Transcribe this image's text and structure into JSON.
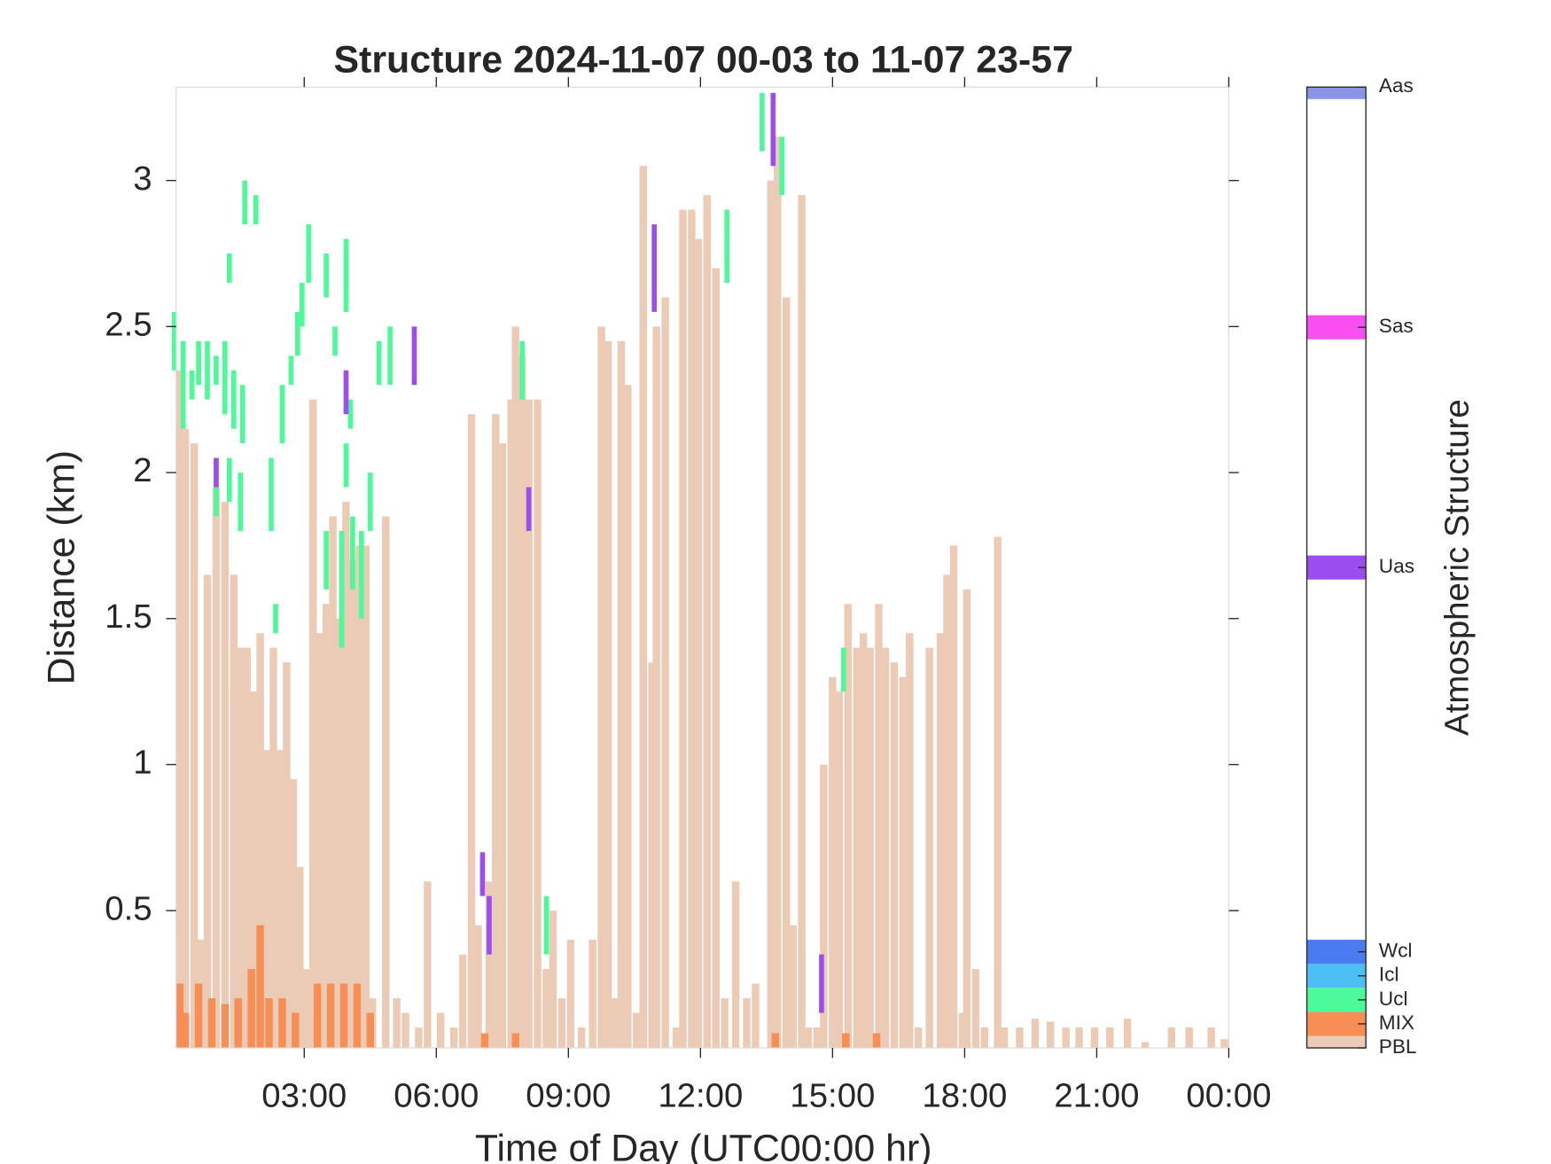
{
  "chart_data": {
    "type": "structure",
    "title": "Structure 2024-11-07 00-03 to 11-07 23-57",
    "x_label": "Time of Day (UTC00:00 hr)",
    "y_label": "Distance (km)",
    "xlim": [
      0.09,
      24
    ],
    "ylim": [
      0.03,
      3.32
    ],
    "xticks": [
      {
        "value": 3,
        "label": "03:00"
      },
      {
        "value": 6,
        "label": "06:00"
      },
      {
        "value": 9,
        "label": "09:00"
      },
      {
        "value": 12,
        "label": "12:00"
      },
      {
        "value": 15,
        "label": "15:00"
      },
      {
        "value": 18,
        "label": "18:00"
      },
      {
        "value": 21,
        "label": "21:00"
      },
      {
        "value": 24,
        "label": "00:00"
      }
    ],
    "yticks": [
      0.5,
      1,
      1.5,
      2,
      2.5,
      3
    ],
    "series": [
      {
        "name": "PBL",
        "x": [
          0.1,
          0.3,
          0.5,
          0.65,
          0.8,
          1.0,
          1.2,
          1.4,
          1.55,
          1.7,
          1.85,
          2.0,
          2.15,
          2.3,
          2.45,
          2.6,
          2.75,
          2.9,
          3.05,
          3.2,
          3.35,
          3.5,
          3.65,
          3.8,
          3.95,
          4.1,
          4.25,
          4.4,
          4.55,
          4.85,
          5.1,
          5.3,
          5.6,
          5.8,
          6.1,
          6.4,
          6.6,
          6.8,
          6.95,
          7.2,
          7.35,
          7.5,
          7.7,
          7.8,
          7.95,
          8.1,
          8.3,
          8.5,
          8.65,
          8.85,
          9.05,
          9.3,
          9.55,
          9.75,
          9.9,
          10.05,
          10.2,
          10.35,
          10.55,
          10.7,
          10.9,
          11.0,
          11.2,
          11.45,
          11.6,
          11.8,
          11.95,
          12.15,
          12.35,
          12.55,
          12.8,
          13.05,
          13.25,
          13.6,
          13.75,
          13.95,
          14.1,
          14.3,
          14.45,
          14.65,
          14.8,
          15.0,
          15.15,
          15.35,
          15.55,
          15.7,
          15.85,
          16.05,
          16.2,
          16.4,
          16.6,
          16.75,
          16.95,
          17.2,
          17.45,
          17.6,
          17.75,
          17.95,
          18.05,
          18.25,
          18.45,
          18.75,
          18.9,
          19.25,
          19.6,
          19.95,
          20.3,
          20.6,
          20.95,
          21.3,
          21.7,
          22.1,
          22.7,
          23.1,
          23.6,
          23.9
        ],
        "values": [
          2.35,
          2.15,
          2.1,
          0.4,
          1.65,
          1.95,
          1.9,
          1.65,
          1.4,
          1.4,
          1.25,
          1.45,
          1.05,
          1.4,
          1.05,
          1.35,
          0.95,
          0.65,
          0.3,
          2.25,
          1.45,
          1.55,
          1.85,
          1.5,
          1.9,
          1.7,
          1.75,
          1.75,
          0.2,
          1.85,
          0.2,
          0.15,
          0.1,
          0.6,
          0.15,
          0.1,
          0.35,
          2.2,
          0.45,
          0.6,
          2.2,
          2.1,
          2.25,
          2.5,
          2.4,
          2.25,
          2.25,
          0.3,
          0.5,
          0.2,
          0.4,
          0.1,
          0.4,
          2.5,
          2.45,
          0.2,
          2.45,
          2.3,
          0.15,
          3.05,
          1.35,
          2.5,
          2.6,
          0.1,
          2.9,
          2.9,
          2.8,
          2.95,
          2.7,
          0.2,
          0.6,
          0.2,
          0.25,
          3.0,
          3.15,
          2.6,
          0.45,
          2.95,
          0.1,
          0.1,
          1.0,
          1.3,
          1.25,
          1.55,
          1.4,
          1.45,
          1.4,
          1.55,
          1.4,
          1.35,
          1.3,
          1.45,
          0.1,
          1.4,
          1.45,
          1.65,
          1.75,
          0.15,
          1.6,
          0.3,
          0.1,
          1.78,
          0.1,
          0.1,
          0.13,
          0.12,
          0.1,
          0.1,
          0.1,
          0.1,
          0.13,
          0.05,
          0.1,
          0.1,
          0.1,
          0.06
        ]
      },
      {
        "name": "MIX",
        "x": [
          0.1,
          0.3,
          0.6,
          0.9,
          1.2,
          1.5,
          1.8,
          2.0,
          2.2,
          2.5,
          2.8,
          3.3,
          3.6,
          3.9,
          4.2,
          4.5,
          7.1,
          7.8,
          13.7,
          15.3,
          16.0
        ],
        "values": [
          0.25,
          0.15,
          0.25,
          0.2,
          0.18,
          0.2,
          0.3,
          0.45,
          0.2,
          0.2,
          0.15,
          0.25,
          0.25,
          0.25,
          0.25,
          0.15,
          0.08,
          0.08,
          0.08,
          0.08,
          0.08
        ]
      },
      {
        "name": "Ucl",
        "x": [
          0.05,
          0.25,
          0.45,
          0.6,
          0.8,
          1.0,
          1.2,
          1.4,
          1.6,
          1.0,
          1.3,
          1.55,
          1.3,
          1.65,
          1.9,
          2.25,
          2.35,
          2.5,
          2.7,
          2.85,
          2.95,
          3.1,
          3.5,
          3.7,
          3.5,
          3.85,
          3.95,
          4.1,
          4.3,
          4.5,
          4.7,
          4.95,
          7.95,
          8.5,
          12.6,
          13.4,
          13.85,
          15.25,
          3.95,
          4.05
        ],
        "low": [
          2.35,
          2.15,
          2.25,
          2.3,
          2.25,
          2.3,
          2.2,
          2.15,
          2.1,
          1.85,
          1.9,
          1.8,
          2.65,
          2.85,
          2.85,
          1.8,
          1.45,
          2.1,
          2.3,
          2.4,
          2.5,
          2.65,
          1.6,
          2.4,
          2.6,
          1.4,
          2.55,
          1.6,
          1.5,
          1.8,
          2.3,
          2.3,
          2.25,
          0.35,
          2.65,
          3.1,
          2.95,
          1.25,
          1.95,
          2.15
        ],
        "high": [
          2.55,
          2.45,
          2.35,
          2.45,
          2.45,
          2.4,
          2.45,
          2.35,
          2.3,
          2.05,
          2.05,
          2.0,
          2.75,
          3.0,
          2.95,
          2.05,
          1.55,
          2.3,
          2.4,
          2.55,
          2.65,
          2.85,
          1.8,
          2.5,
          2.75,
          1.8,
          2.8,
          1.85,
          1.8,
          2.0,
          2.45,
          2.5,
          2.45,
          0.55,
          2.9,
          3.3,
          3.15,
          1.4,
          2.1,
          2.25
        ]
      },
      {
        "name": "Uas",
        "x": [
          1.0,
          3.95,
          5.5,
          7.05,
          7.2,
          8.1,
          10.95,
          13.65,
          14.75
        ],
        "low": [
          1.95,
          2.2,
          2.3,
          0.55,
          0.35,
          1.8,
          2.55,
          3.05,
          0.15
        ],
        "high": [
          2.05,
          2.35,
          2.5,
          0.7,
          0.55,
          1.95,
          2.85,
          3.3,
          0.35
        ]
      }
    ],
    "colorbar": {
      "label": "Atmospheric Structure",
      "lim": [
        0,
        40
      ],
      "ticks": [
        {
          "value": 0,
          "label": "PBL",
          "color": "#ebcbb5"
        },
        {
          "value": 1,
          "label": "MIX",
          "color": "#f68e55"
        },
        {
          "value": 2,
          "label": "Ucl",
          "color": "#4dfa9a"
        },
        {
          "value": 3,
          "label": "Icl",
          "color": "#4dbff5"
        },
        {
          "value": 4,
          "label": "Wcl",
          "color": "#4a7bf0"
        },
        {
          "value": 20,
          "label": "Uas",
          "color": "#9b4df2"
        },
        {
          "value": 30,
          "label": "Sas",
          "color": "#f94ef0"
        },
        {
          "value": 40,
          "label": "Aas",
          "color": "#8895e6"
        }
      ]
    }
  }
}
